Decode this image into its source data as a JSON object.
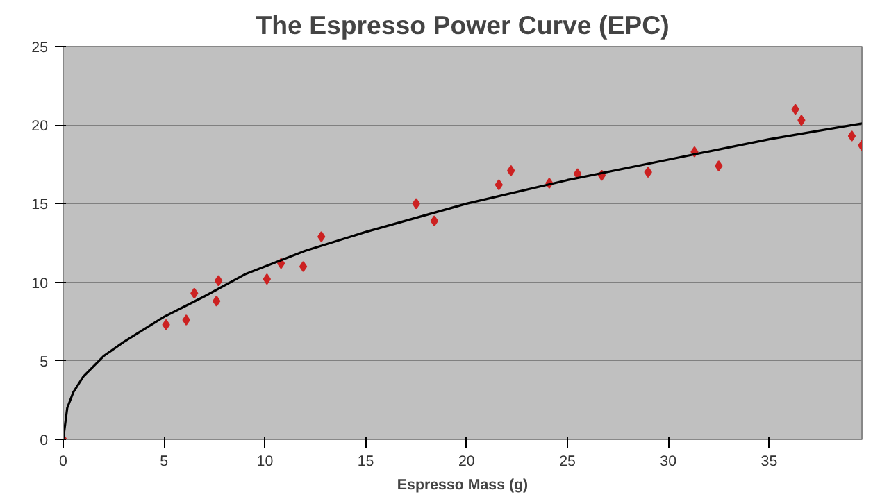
{
  "chart_data": {
    "type": "scatter",
    "title": "The Espresso Power Curve (EPC)",
    "xlabel": "Espresso Mass (g)",
    "xlim": [
      0,
      39.6
    ],
    "ylim": [
      0,
      25
    ],
    "xticks": [
      0,
      5,
      10,
      15,
      20,
      25,
      30,
      35
    ],
    "yticks": [
      0,
      5,
      10,
      15,
      20,
      25
    ],
    "grid": "y",
    "series": [
      {
        "color": "#cc2222",
        "marker": "diamond",
        "x": [
          0,
          5.1,
          6.1,
          6.5,
          7.6,
          7.7,
          10.1,
          10.8,
          11.9,
          12.8,
          17.5,
          18.4,
          21.6,
          22.2,
          24.1,
          25.5,
          26.7,
          29.0,
          31.3,
          32.5,
          36.3,
          36.6,
          39.1,
          39.6
        ],
        "values": [
          0,
          7.3,
          7.6,
          9.3,
          8.8,
          10.1,
          10.2,
          11.2,
          11.0,
          12.9,
          15.0,
          13.9,
          16.2,
          17.1,
          16.3,
          16.9,
          16.8,
          17.0,
          18.3,
          17.4,
          21.0,
          20.3,
          19.3,
          18.7
        ]
      },
      {
        "type": "line",
        "color": "#000000",
        "marker": "none",
        "line_style": "solid",
        "x": [
          0,
          0.2,
          0.5,
          1,
          2,
          3,
          5,
          7,
          9,
          12,
          15,
          20,
          25,
          30,
          35,
          39.6
        ],
        "values": [
          0,
          2,
          3,
          4,
          5.3,
          6.2,
          7.8,
          9.1,
          10.5,
          12,
          13.2,
          15,
          16.5,
          17.8,
          19.1,
          20.1
        ]
      }
    ]
  }
}
